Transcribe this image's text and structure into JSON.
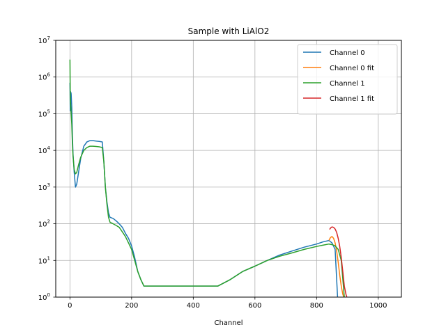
{
  "chart_data": {
    "type": "line",
    "title": "Sample with LiAlO2",
    "xlabel": "Channel",
    "ylabel": "",
    "xlim": [
      -46,
      1075
    ],
    "ylim": [
      1,
      10000000
    ],
    "yscale": "log",
    "grid": true,
    "legend_position": "top-right",
    "x_ticks": [
      0,
      200,
      400,
      600,
      800,
      1000
    ],
    "y_ticks": [
      {
        "value": 1,
        "base": "10",
        "exp": "0"
      },
      {
        "value": 10,
        "base": "10",
        "exp": "1"
      },
      {
        "value": 100,
        "base": "10",
        "exp": "2"
      },
      {
        "value": 1000,
        "base": "10",
        "exp": "3"
      },
      {
        "value": 10000,
        "base": "10",
        "exp": "4"
      },
      {
        "value": 100000,
        "base": "10",
        "exp": "5"
      },
      {
        "value": 1000000,
        "base": "10",
        "exp": "6"
      },
      {
        "value": 10000000,
        "base": "10",
        "exp": "7"
      }
    ],
    "series": [
      {
        "name": "Channel 0",
        "color": "#1f77b4",
        "x": [
          0,
          1,
          2,
          3,
          4,
          6,
          8,
          10,
          14,
          18,
          22,
          28,
          35,
          45,
          55,
          65,
          75,
          85,
          95,
          105,
          110,
          115,
          120,
          125,
          130,
          140,
          150,
          160,
          170,
          180,
          190,
          200,
          210,
          220,
          230,
          240,
          250,
          270,
          300,
          330,
          360,
          400,
          440,
          480,
          520,
          560,
          600,
          640,
          680,
          720,
          760,
          800,
          820,
          840,
          850,
          860,
          868
        ],
        "y": [
          700000,
          120000,
          400000,
          380000,
          350000,
          150000,
          25000,
          8000,
          2500,
          1000,
          1200,
          2500,
          6000,
          13000,
          17000,
          18500,
          18500,
          18000,
          17500,
          17000,
          5000,
          1000,
          400,
          200,
          150,
          140,
          120,
          100,
          80,
          55,
          40,
          25,
          12,
          5,
          3,
          2,
          2,
          2,
          2,
          2,
          2,
          2,
          2,
          2,
          3,
          5,
          7,
          10,
          14,
          18,
          23,
          28,
          32,
          35,
          30,
          20,
          1
        ]
      },
      {
        "name": "Channel 0 fit",
        "color": "#ff7f0e",
        "x": [
          840,
          845,
          850,
          855,
          860,
          865,
          870,
          875,
          880,
          885,
          888
        ],
        "y": [
          35,
          42,
          45,
          40,
          30,
          18,
          9,
          4,
          2,
          1.2,
          1
        ]
      },
      {
        "name": "Channel 1",
        "color": "#2ca02c",
        "x": [
          0,
          1,
          2,
          3,
          4,
          6,
          8,
          10,
          14,
          18,
          22,
          28,
          35,
          45,
          55,
          65,
          75,
          85,
          95,
          105,
          110,
          115,
          120,
          125,
          130,
          140,
          150,
          160,
          170,
          180,
          190,
          200,
          210,
          220,
          230,
          240,
          250,
          270,
          300,
          330,
          360,
          400,
          440,
          480,
          520,
          560,
          600,
          640,
          680,
          720,
          760,
          800,
          820,
          840,
          850,
          860,
          870,
          880,
          890
        ],
        "y": [
          3000000,
          300000,
          200000,
          150000,
          100000,
          50000,
          15000,
          7000,
          3000,
          2300,
          2500,
          4000,
          6500,
          10000,
          12000,
          13000,
          13000,
          12800,
          12500,
          12000,
          5000,
          1000,
          350,
          150,
          110,
          100,
          90,
          80,
          60,
          45,
          30,
          20,
          10,
          5,
          3,
          2,
          2,
          2,
          2,
          2,
          2,
          2,
          2,
          2,
          3,
          5,
          7,
          10,
          13,
          16,
          20,
          24,
          26,
          28,
          27,
          25,
          20,
          10,
          1
        ]
      },
      {
        "name": "Channel 1 fit",
        "color": "#d62728",
        "x": [
          842,
          846,
          850,
          855,
          860,
          865,
          870,
          875,
          880,
          885,
          890,
          895,
          898
        ],
        "y": [
          70,
          78,
          82,
          80,
          72,
          58,
          40,
          24,
          12,
          5,
          2,
          1.2,
          1
        ]
      }
    ]
  }
}
